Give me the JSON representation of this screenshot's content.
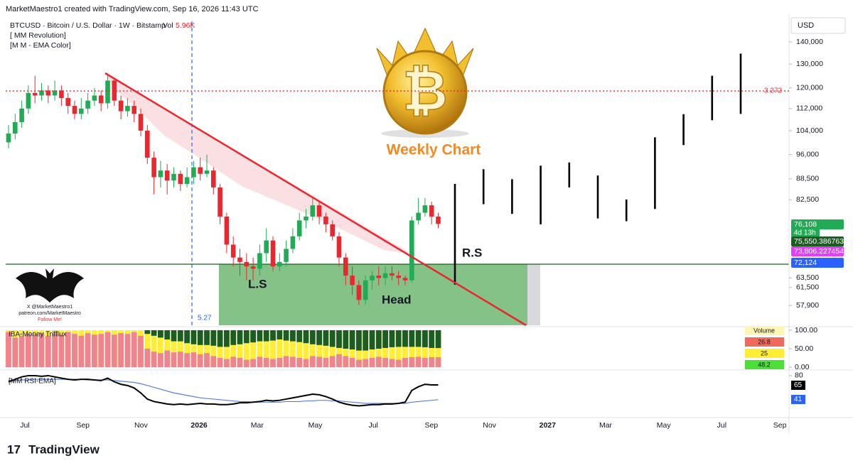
{
  "header": {
    "title": "MarketMaestro1 created with TradingView.com, Sep 16, 2026 11:43 UTC",
    "symbol": "BTCUSD · Bitcoin / U.S. Dollar · 1W · Bitstamp",
    "vol_label": "Vol",
    "vol_value": "5.96K",
    "indicators": [
      "[ MM Revolution]",
      "[M M - EMA Color]"
    ]
  },
  "chart_data": {
    "type": "candlestick",
    "log_scale": true,
    "y_axis_label": "USD",
    "ylim": [
      54200,
      150000
    ],
    "yticks": [
      {
        "value": 140000,
        "label": "140,000"
      },
      {
        "value": 130000,
        "label": "130,000"
      },
      {
        "value": 120000,
        "label": "120,000"
      },
      {
        "value": 112000,
        "label": "112,000"
      },
      {
        "value": 104000,
        "label": "104,000"
      },
      {
        "value": 96000,
        "label": "96,000"
      },
      {
        "value": 88500,
        "label": "88,500"
      },
      {
        "value": 82500,
        "label": "82,500"
      },
      {
        "value": 63500,
        "label": "63,500"
      },
      {
        "value": 61500,
        "label": "61,500"
      },
      {
        "value": 57900,
        "label": "57,900"
      }
    ],
    "x_labels": [
      "Jul",
      "Sep",
      "Nov",
      "2026",
      "Mar",
      "May",
      "Jul",
      "Sep",
      "Nov",
      "2027",
      "Mar",
      "May",
      "Jul",
      "Sep"
    ],
    "up_color": "#22ab55",
    "down_color": "#e8282e",
    "open": [
      100000,
      103000,
      107000,
      112000,
      118000,
      117000,
      119000,
      117000,
      119000,
      116000,
      113000,
      110000,
      112000,
      115000,
      117000,
      114000,
      123000,
      115000,
      111000,
      113000,
      110000,
      104000,
      95000,
      89000,
      91000,
      88000,
      90000,
      87000,
      89000,
      92000,
      90000,
      91000,
      86000,
      78000,
      71000,
      68000,
      67000,
      66000,
      65500,
      69000,
      72000,
      66000,
      67000,
      70000,
      73000,
      77000,
      78000,
      81000,
      78000,
      76000,
      73000,
      68000,
      64000,
      62000,
      59000,
      63000,
      64000,
      63500,
      64500,
      64000,
      63500,
      63000,
      77000,
      79000,
      81000,
      78000
    ],
    "high": [
      106000,
      110000,
      115000,
      121000,
      125000,
      122000,
      121000,
      123000,
      121000,
      118000,
      115000,
      116000,
      118000,
      120000,
      119000,
      126000,
      124000,
      117000,
      116000,
      115000,
      112000,
      106000,
      97000,
      94000,
      93000,
      92000,
      91000,
      92000,
      94000,
      95000,
      96000,
      92000,
      87000,
      79000,
      73000,
      70000,
      69000,
      68000,
      71000,
      75000,
      73000,
      69000,
      72000,
      75000,
      79000,
      80000,
      83000,
      82000,
      79000,
      77000,
      74000,
      69000,
      66000,
      63000,
      64000,
      65000,
      66000,
      66000,
      66000,
      65000,
      64000,
      78000,
      83000,
      83000,
      82000,
      79000
    ],
    "low": [
      98000,
      101000,
      105000,
      110000,
      114000,
      115000,
      114000,
      115000,
      113000,
      110000,
      108000,
      108000,
      110000,
      113000,
      111000,
      112000,
      113000,
      108000,
      109000,
      107000,
      102000,
      93000,
      84000,
      86000,
      84000,
      86000,
      85000,
      86000,
      87000,
      88000,
      89000,
      84000,
      76000,
      69000,
      66000,
      64000,
      63000,
      63000,
      64000,
      67000,
      65000,
      65000,
      66000,
      69000,
      72000,
      75000,
      77000,
      76000,
      74000,
      72000,
      66000,
      62000,
      60000,
      58000,
      58000,
      61000,
      62000,
      62000,
      63000,
      62000,
      62000,
      62500,
      76000,
      78000,
      76000,
      75000
    ],
    "close": [
      103000,
      107000,
      112000,
      118000,
      117000,
      119000,
      117000,
      119000,
      116000,
      113000,
      110000,
      112000,
      115000,
      117000,
      114000,
      123000,
      115000,
      111000,
      113000,
      110000,
      104000,
      95000,
      89000,
      91000,
      88000,
      90000,
      87000,
      89000,
      92000,
      90000,
      91000,
      86000,
      78000,
      71000,
      68000,
      67000,
      66000,
      65500,
      69000,
      72000,
      66000,
      67000,
      70000,
      73000,
      77000,
      78000,
      81000,
      78000,
      76000,
      73000,
      68000,
      64000,
      62000,
      59000,
      63000,
      64000,
      63500,
      64500,
      64000,
      63500,
      63000,
      77000,
      79000,
      81000,
      78000,
      76108
    ],
    "projection": {
      "color": "#000000",
      "high": [
        87000,
        91400,
        88400,
        92500,
        93500,
        89500,
        82600,
        101700,
        109900,
        125000,
        134600
      ],
      "low": [
        62100,
        81300,
        78700,
        76000,
        86000,
        77500,
        76800,
        80000,
        99100,
        107700,
        110000
      ]
    },
    "level_line": {
      "value": 118800,
      "label": "3.272",
      "color": "#e8282e"
    },
    "annotations": {
      "weekly": "Weekly Chart",
      "ls": "L.S",
      "head": "Head",
      "rs": "R.S",
      "vline": "5.27"
    },
    "price_tags": [
      {
        "value": 76108,
        "label": "76,108",
        "color": "#22ab55"
      },
      {
        "value": 75550.386763,
        "label": "75,550.386763",
        "color": "#1b5e20"
      },
      {
        "value": 73806.227454,
        "label": "73,806.227454",
        "color": "#e040fb"
      },
      {
        "value": 72124,
        "label": "72,124",
        "color": "#2962ff"
      }
    ],
    "countdown": "4d 13h",
    "trifflux": {
      "title": "IBA-Money Trifflux",
      "ylim": [
        0,
        100
      ],
      "yticks": [
        {
          "value": 100,
          "label": "100.00"
        },
        {
          "value": 50,
          "label": "50.00"
        },
        {
          "value": 0,
          "label": "0.00"
        }
      ],
      "colors": {
        "red": "#f0838c",
        "yellow": "#ffee33",
        "green": "#1b5e20"
      },
      "red": [
        95,
        80,
        85,
        90,
        88,
        92,
        85,
        90,
        88,
        95,
        90,
        85,
        92,
        88,
        90,
        95,
        88,
        92,
        90,
        95,
        85,
        50,
        42,
        38,
        45,
        40,
        42,
        38,
        40,
        35,
        38,
        30,
        25,
        22,
        28,
        25,
        20,
        22,
        28,
        25,
        22,
        25,
        30,
        28,
        25,
        22,
        30,
        28,
        25,
        30,
        35,
        30,
        25,
        20,
        22,
        25,
        28,
        25,
        22,
        20,
        25,
        27,
        28,
        25,
        27,
        26.8
      ],
      "green": [
        0,
        0,
        0,
        0,
        0,
        0,
        0,
        0,
        0,
        0,
        0,
        0,
        0,
        0,
        0,
        0,
        0,
        0,
        0,
        0,
        0,
        10,
        15,
        20,
        25,
        30,
        30,
        35,
        38,
        40,
        40,
        42,
        45,
        45,
        40,
        38,
        35,
        33,
        30,
        30,
        28,
        25,
        28,
        30,
        32,
        35,
        38,
        40,
        42,
        45,
        48,
        50,
        52,
        55,
        55,
        52,
        50,
        48,
        46,
        45,
        45,
        45,
        45,
        46,
        48,
        48.2
      ],
      "readout_label": "Volume",
      "readout": [
        26.8,
        25,
        48.2
      ]
    },
    "rsi": {
      "title": "[MM RSI-EMA]",
      "ylim": [
        12,
        88
      ],
      "yticks": [
        80
      ],
      "color": "#000000",
      "ema_color": "#5b7fd6",
      "values": [
        70,
        74,
        78,
        80,
        80,
        79,
        80,
        78,
        76,
        74,
        73,
        74,
        74,
        73,
        72,
        76,
        70,
        66,
        64,
        60,
        52,
        42,
        38,
        36,
        34,
        33,
        34,
        33,
        34,
        35,
        34,
        34,
        33,
        33,
        34,
        36,
        36,
        37,
        38,
        40,
        39,
        40,
        42,
        44,
        46,
        48,
        50,
        49,
        46,
        42,
        37,
        34,
        32,
        31,
        32,
        33,
        33,
        34,
        34,
        35,
        37,
        56,
        62,
        66,
        65,
        65
      ],
      "ema": [
        72,
        72,
        73,
        73,
        74,
        74,
        74,
        74,
        74,
        74,
        74,
        74,
        73,
        73,
        73,
        73,
        72,
        71,
        70,
        69,
        67,
        64,
        61,
        58,
        55,
        52,
        50,
        48,
        46,
        44,
        43,
        42,
        41,
        40,
        39,
        38,
        38,
        37,
        37,
        37,
        37,
        37,
        38,
        38,
        38,
        39,
        39,
        40,
        40,
        39,
        39,
        38,
        37,
        36,
        35,
        35,
        35,
        35,
        35,
        35,
        35,
        37,
        38,
        39,
        40,
        41
      ]
    }
  },
  "watermark": [
    "X @MarketMaestro1",
    "patreon.com/MarketMaestro",
    "Follow Me!"
  ],
  "footer": "TradingView"
}
